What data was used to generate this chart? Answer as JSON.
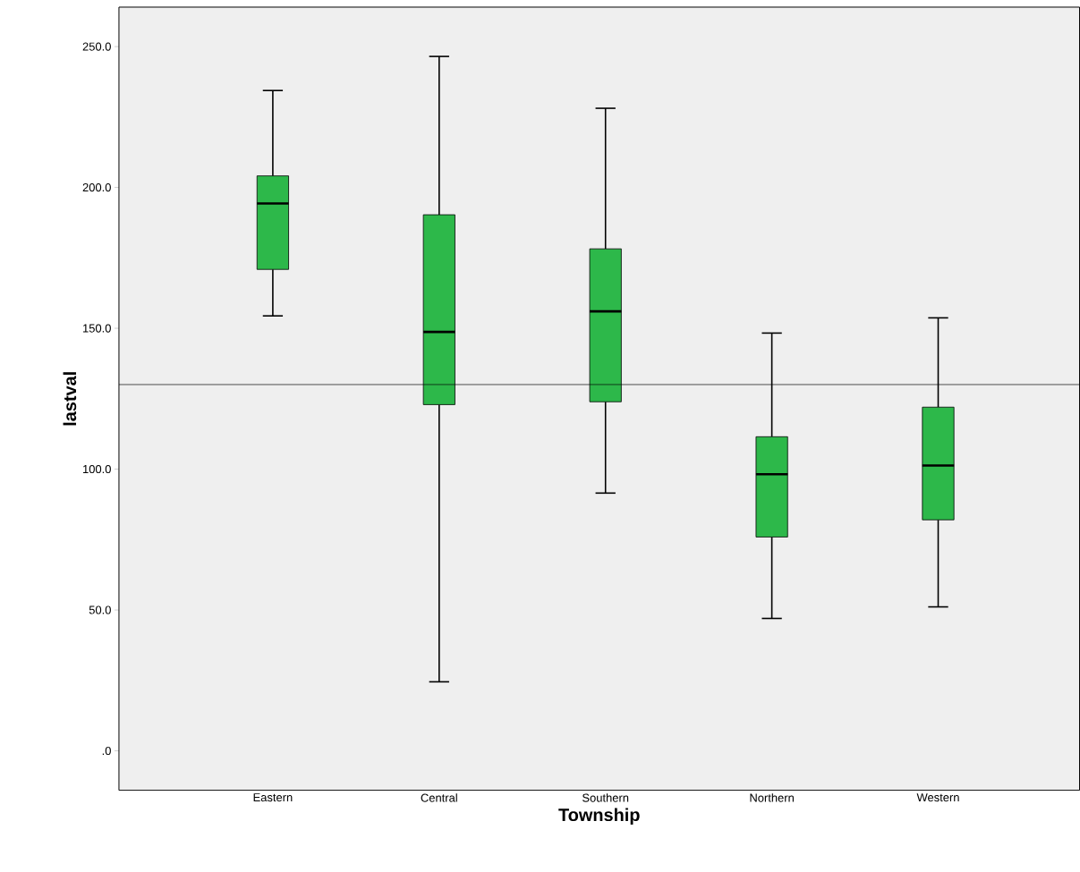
{
  "chart_data": {
    "type": "box",
    "xlabel": "Township",
    "ylabel": "lastval",
    "categories": [
      "Eastern",
      "Central",
      "Southern",
      "Northern",
      "Western"
    ],
    "series": [
      {
        "color": "#2db84a",
        "boxes": [
          {
            "low": 154.4,
            "q1": 170.9,
            "median": 194.3,
            "q3": 204.1,
            "high": 234.4
          },
          {
            "low": 24.5,
            "q1": 122.9,
            "median": 148.7,
            "q3": 190.3,
            "high": 246.5
          },
          {
            "low": 91.5,
            "q1": 123.9,
            "median": 156.0,
            "q3": 178.2,
            "high": 228.1
          },
          {
            "low": 47.0,
            "q1": 75.9,
            "median": 98.2,
            "q3": 111.5,
            "high": 148.3
          },
          {
            "low": 51.1,
            "q1": 82.0,
            "median": 101.3,
            "q3": 122.0,
            "high": 153.7
          }
        ]
      }
    ],
    "ylim": [
      -14,
      264
    ],
    "yticks": [
      {
        "value": 0,
        "label": ".0"
      },
      {
        "value": 50,
        "label": "50.0"
      },
      {
        "value": 100,
        "label": "100.0"
      },
      {
        "value": 150,
        "label": "150.0"
      },
      {
        "value": 200,
        "label": "200.0"
      },
      {
        "value": 250,
        "label": "250.0"
      }
    ],
    "ref_lines": [
      {
        "axis": "y",
        "value": 130
      }
    ]
  }
}
